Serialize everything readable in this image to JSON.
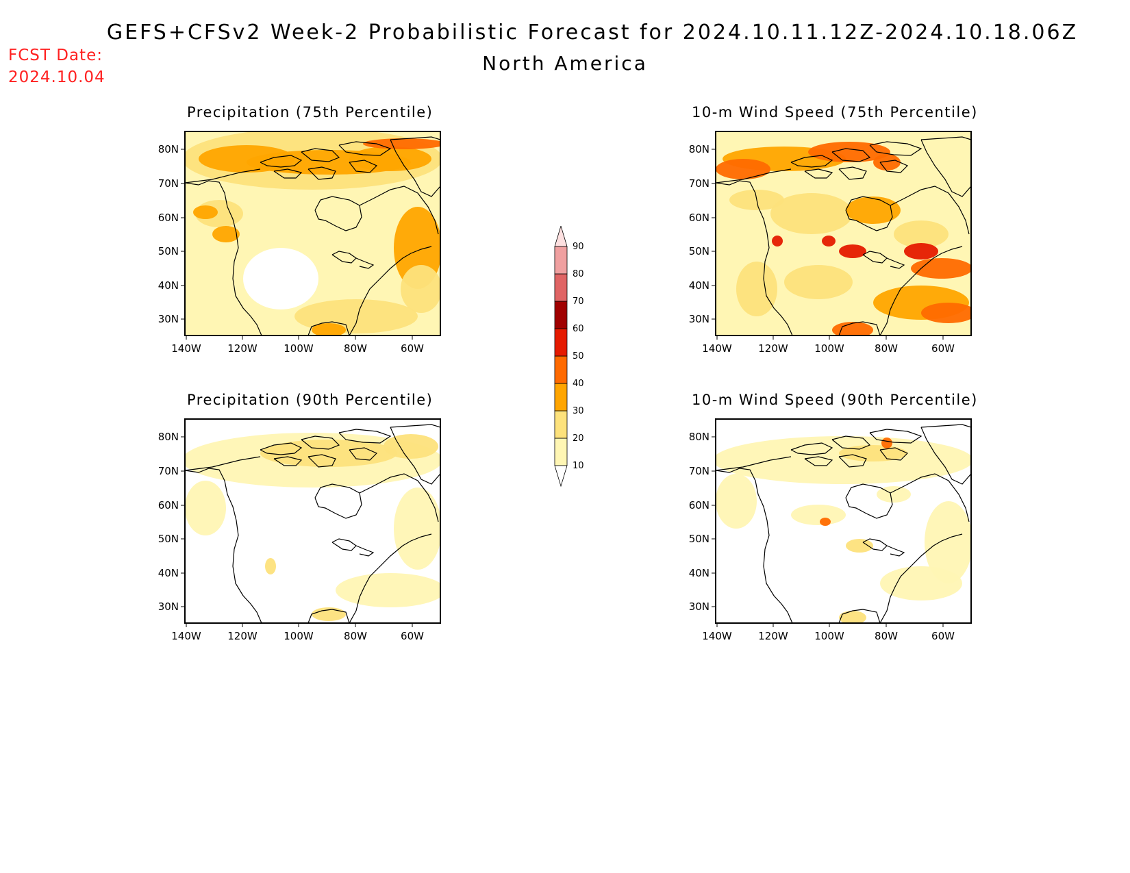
{
  "header": {
    "title": "GEFS+CFSv2 Week-2 Probabilistic Forecast for 2024.10.11.12Z-2024.10.18.06Z",
    "region": "North America",
    "fcst_date_label": "FCST Date:",
    "fcst_date_value": "2024.10.04"
  },
  "axes": {
    "lat_ticks": [
      "80N",
      "70N",
      "60N",
      "50N",
      "40N",
      "30N"
    ],
    "lon_ticks": [
      "140W",
      "120W",
      "100W",
      "80W",
      "60W"
    ]
  },
  "panels": [
    {
      "title": "Precipitation (75th Percentile)"
    },
    {
      "title": "10-m Wind Speed (75th Percentile)"
    },
    {
      "title": "Precipitation (90th Percentile)"
    },
    {
      "title": "10-m Wind Speed (90th Percentile)"
    }
  ],
  "colorbar": {
    "levels": [
      "10",
      "20",
      "30",
      "40",
      "50",
      "60",
      "70",
      "80",
      "90"
    ],
    "colors": [
      "#fff6b4",
      "#fde27c",
      "#ffa500",
      "#ff6a00",
      "#e51a00",
      "#a00000",
      "#e06464",
      "#f0a0a0",
      "#fde0e0"
    ]
  }
}
